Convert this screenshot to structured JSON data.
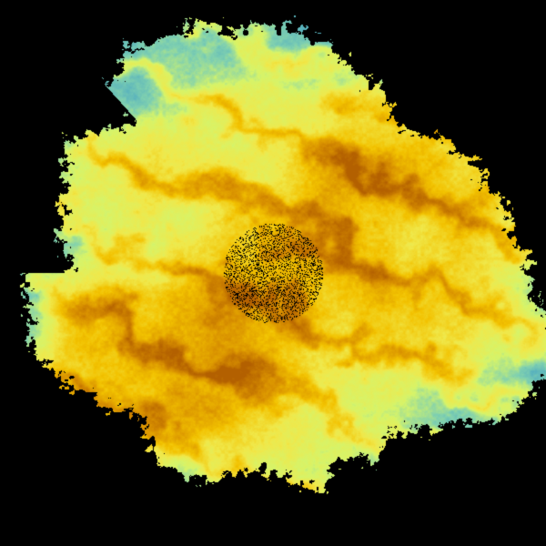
{
  "image": {
    "kind": "radar-velocity-like field",
    "background": "#000000",
    "palette": [
      "#1f78b4",
      "#4aa7c3",
      "#7fd0b0",
      "#d6f46a",
      "#f0e84a",
      "#f2c200",
      "#d89000",
      "#b36000"
    ]
  }
}
